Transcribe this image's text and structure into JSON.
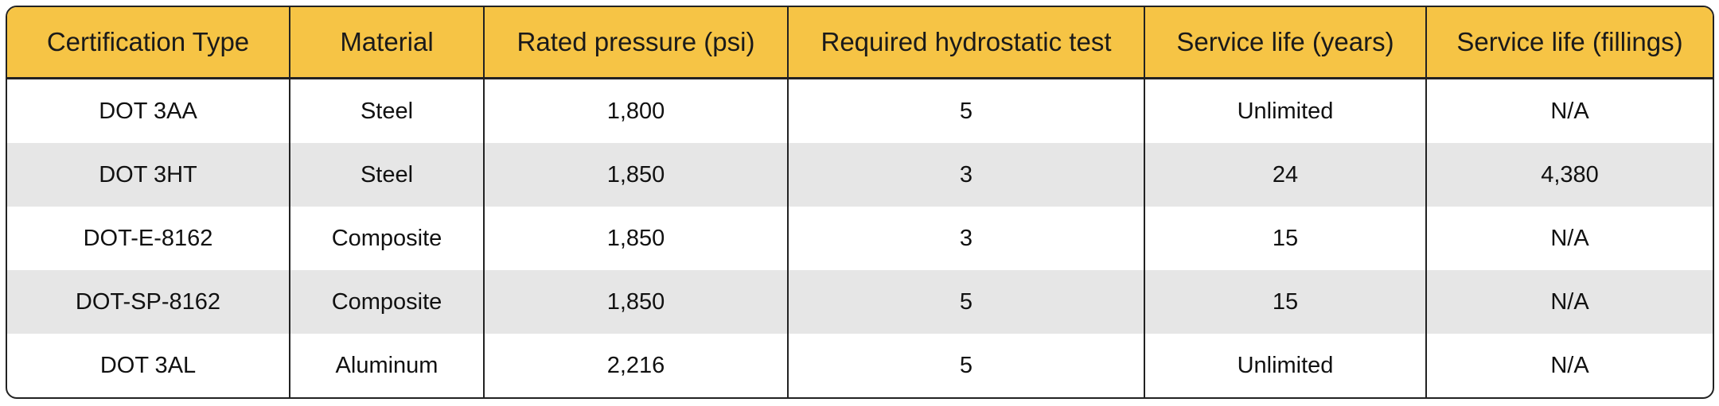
{
  "table": {
    "header": [
      "Certification Type",
      "Material",
      "Rated pressure (psi)",
      "Required hydrostatic test",
      "Service life (years)",
      "Service life (fillings)"
    ],
    "rows": [
      [
        "DOT 3AA",
        "Steel",
        "1,800",
        "5",
        "Unlimited",
        "N/A"
      ],
      [
        "DOT 3HT",
        "Steel",
        "1,850",
        "3",
        "24",
        "4,380"
      ],
      [
        "DOT-E-8162",
        "Composite",
        "1,850",
        "3",
        "15",
        "N/A"
      ],
      [
        "DOT-SP-8162",
        "Composite",
        "1,850",
        "5",
        "15",
        "N/A"
      ],
      [
        "DOT 3AL",
        "Aluminum",
        "2,216",
        "5",
        "Unlimited",
        "N/A"
      ]
    ]
  }
}
